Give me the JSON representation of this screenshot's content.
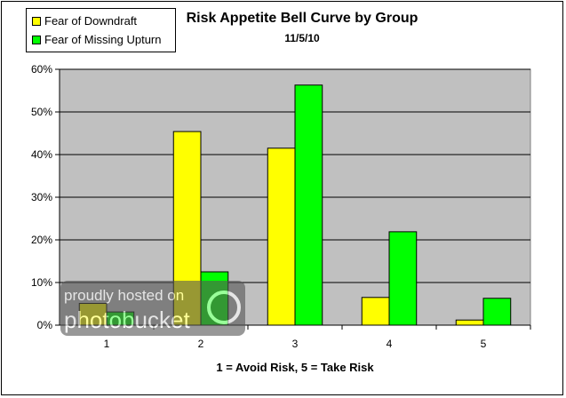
{
  "chart_data": {
    "type": "bar",
    "title": "Risk Appetite Bell Curve by Group",
    "subtitle": "11/5/10",
    "xlabel": "1 = Avoid Risk, 5 = Take Risk",
    "ylabel": "",
    "categories": [
      "1",
      "2",
      "3",
      "4",
      "5"
    ],
    "series": [
      {
        "name": "Fear of Downdraft",
        "color": "#FFFF00",
        "values": [
          5.1,
          45.4,
          41.5,
          6.5,
          1.2
        ]
      },
      {
        "name": "Fear of Missing Upturn",
        "color": "#00FF00",
        "values": [
          3.1,
          12.5,
          56.3,
          21.9,
          6.3
        ]
      }
    ],
    "ylim": [
      0,
      60
    ],
    "yticks": [
      "0%",
      "10%",
      "20%",
      "30%",
      "40%",
      "50%",
      "60%"
    ],
    "grid": true,
    "plot_background": "#C0C0C0",
    "legend_position": "top-left",
    "watermark": "proudly hosted on photobucket"
  }
}
